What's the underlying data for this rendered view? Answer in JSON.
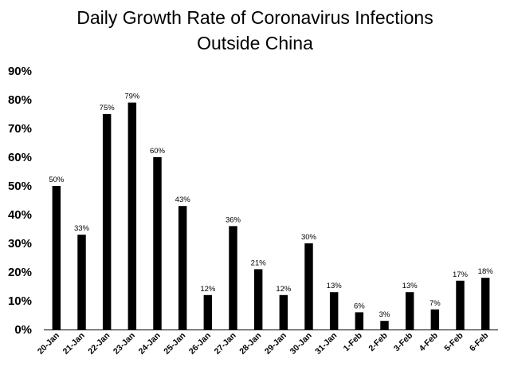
{
  "chart_data": {
    "type": "bar",
    "title_lines": [
      "Daily Growth Rate of Coronavirus Infections",
      "Outside China"
    ],
    "categories": [
      "20-Jan",
      "21-Jan",
      "22-Jan",
      "23-Jan",
      "24-Jan",
      "25-Jan",
      "26-Jan",
      "27-Jan",
      "28-Jan",
      "29-Jan",
      "30-Jan",
      "31-Jan",
      "1-Feb",
      "2-Feb",
      "3-Feb",
      "4-Feb",
      "5-Feb",
      "6-Feb"
    ],
    "values": [
      50,
      33,
      75,
      79,
      60,
      43,
      12,
      36,
      21,
      12,
      30,
      13,
      6,
      3,
      13,
      7,
      17,
      18
    ],
    "data_labels": [
      "50%",
      "33%",
      "75%",
      "79%",
      "60%",
      "43%",
      "12%",
      "36%",
      "21%",
      "12%",
      "30%",
      "13%",
      "6%",
      "3%",
      "13%",
      "7%",
      "17%",
      "18%"
    ],
    "yticks": [
      0,
      10,
      20,
      30,
      40,
      50,
      60,
      70,
      80,
      90
    ],
    "ytick_labels": [
      "0%",
      "10%",
      "20%",
      "30%",
      "40%",
      "50%",
      "60%",
      "70%",
      "80%",
      "90%"
    ],
    "ylim": [
      0,
      90
    ],
    "xlabel": "",
    "ylabel": "",
    "grid": false,
    "legend": "none",
    "bar_color": "#000000",
    "axis_color": "#000000"
  }
}
